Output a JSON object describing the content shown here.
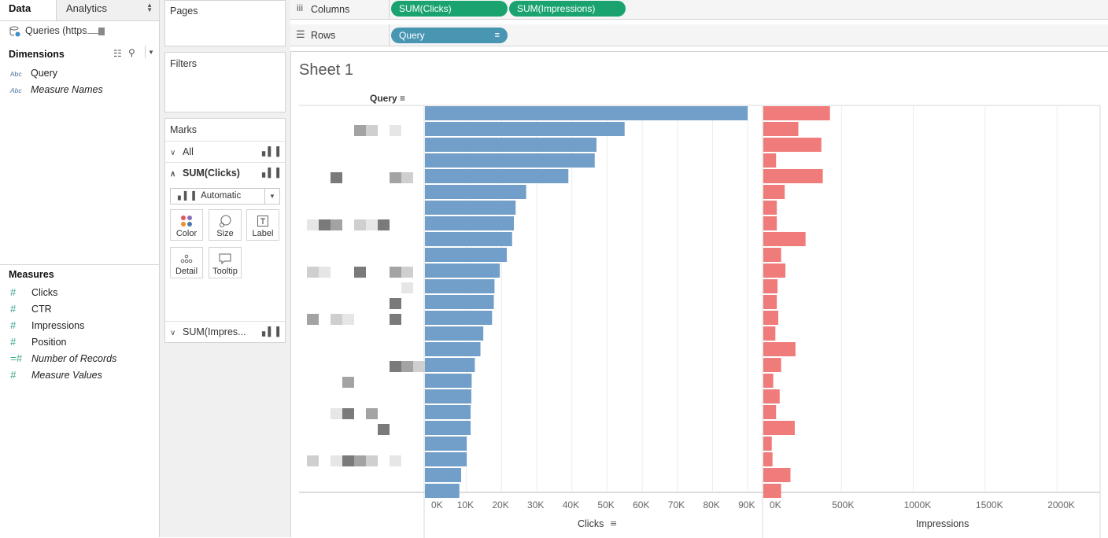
{
  "data_pane": {
    "tab_data": "Data",
    "tab_analytics": "Analytics",
    "datasource": "Queries (https",
    "dimensions_title": "Dimensions",
    "dimensions": [
      {
        "type": "Abc",
        "label": "Query",
        "italic": false
      },
      {
        "type": "Abc",
        "label": "Measure Names",
        "italic": true
      }
    ],
    "measures_title": "Measures",
    "measures": [
      {
        "type": "#",
        "label": "Clicks",
        "italic": false
      },
      {
        "type": "#",
        "label": "CTR",
        "italic": false
      },
      {
        "type": "#",
        "label": "Impressions",
        "italic": false
      },
      {
        "type": "#",
        "label": "Position",
        "italic": false
      },
      {
        "type": "=#",
        "label": "Number of Records",
        "italic": true
      },
      {
        "type": "#",
        "label": "Measure Values",
        "italic": true
      }
    ]
  },
  "pages_title": "Pages",
  "filters_title": "Filters",
  "marks": {
    "title": "Marks",
    "all": "All",
    "clicks": "SUM(Clicks)",
    "mark_type": "Automatic",
    "buttons": [
      "Color",
      "Size",
      "Label",
      "Detail",
      "Tooltip"
    ],
    "impressions": "SUM(Impres..."
  },
  "shelves": {
    "columns_label": "Columns",
    "rows_label": "Rows",
    "column_pills": [
      "SUM(Clicks)",
      "SUM(Impressions)"
    ],
    "row_pill": "Query"
  },
  "sheet_title": "Sheet 1",
  "row_header": "Query",
  "colors": {
    "clicks_bar": "#729fc9",
    "impressions_bar": "#f07b7b",
    "pill_green": "#1aa36f",
    "pill_blue": "#4996b2"
  },
  "chart_data": [
    {
      "type": "bar",
      "orientation": "horizontal",
      "xlabel": "Clicks",
      "xlim": [
        0,
        94000
      ],
      "ticks": [
        "0K",
        "10K",
        "20K",
        "30K",
        "40K",
        "50K",
        "60K",
        "70K",
        "80K",
        "90K"
      ],
      "values": [
        90000,
        55000,
        47000,
        46500,
        39000,
        27000,
        24000,
        23500,
        23000,
        21500,
        19500,
        18000,
        17800,
        17300,
        14800,
        14000,
        12400,
        11500,
        11400,
        11200,
        11200,
        10100,
        10100,
        8500,
        8000
      ]
    },
    {
      "type": "bar",
      "orientation": "horizontal",
      "xlabel": "Impressions",
      "xlim": [
        0,
        2300000
      ],
      "ticks": [
        "0K",
        "500K",
        "1000K",
        "1500K",
        "2000K"
      ],
      "values": [
        420000,
        200000,
        360000,
        45000,
        370000,
        105000,
        50000,
        50000,
        250000,
        80000,
        110000,
        55000,
        50000,
        60000,
        40000,
        180000,
        80000,
        25000,
        70000,
        45000,
        175000,
        15000,
        20000,
        145000,
        80000
      ]
    }
  ]
}
